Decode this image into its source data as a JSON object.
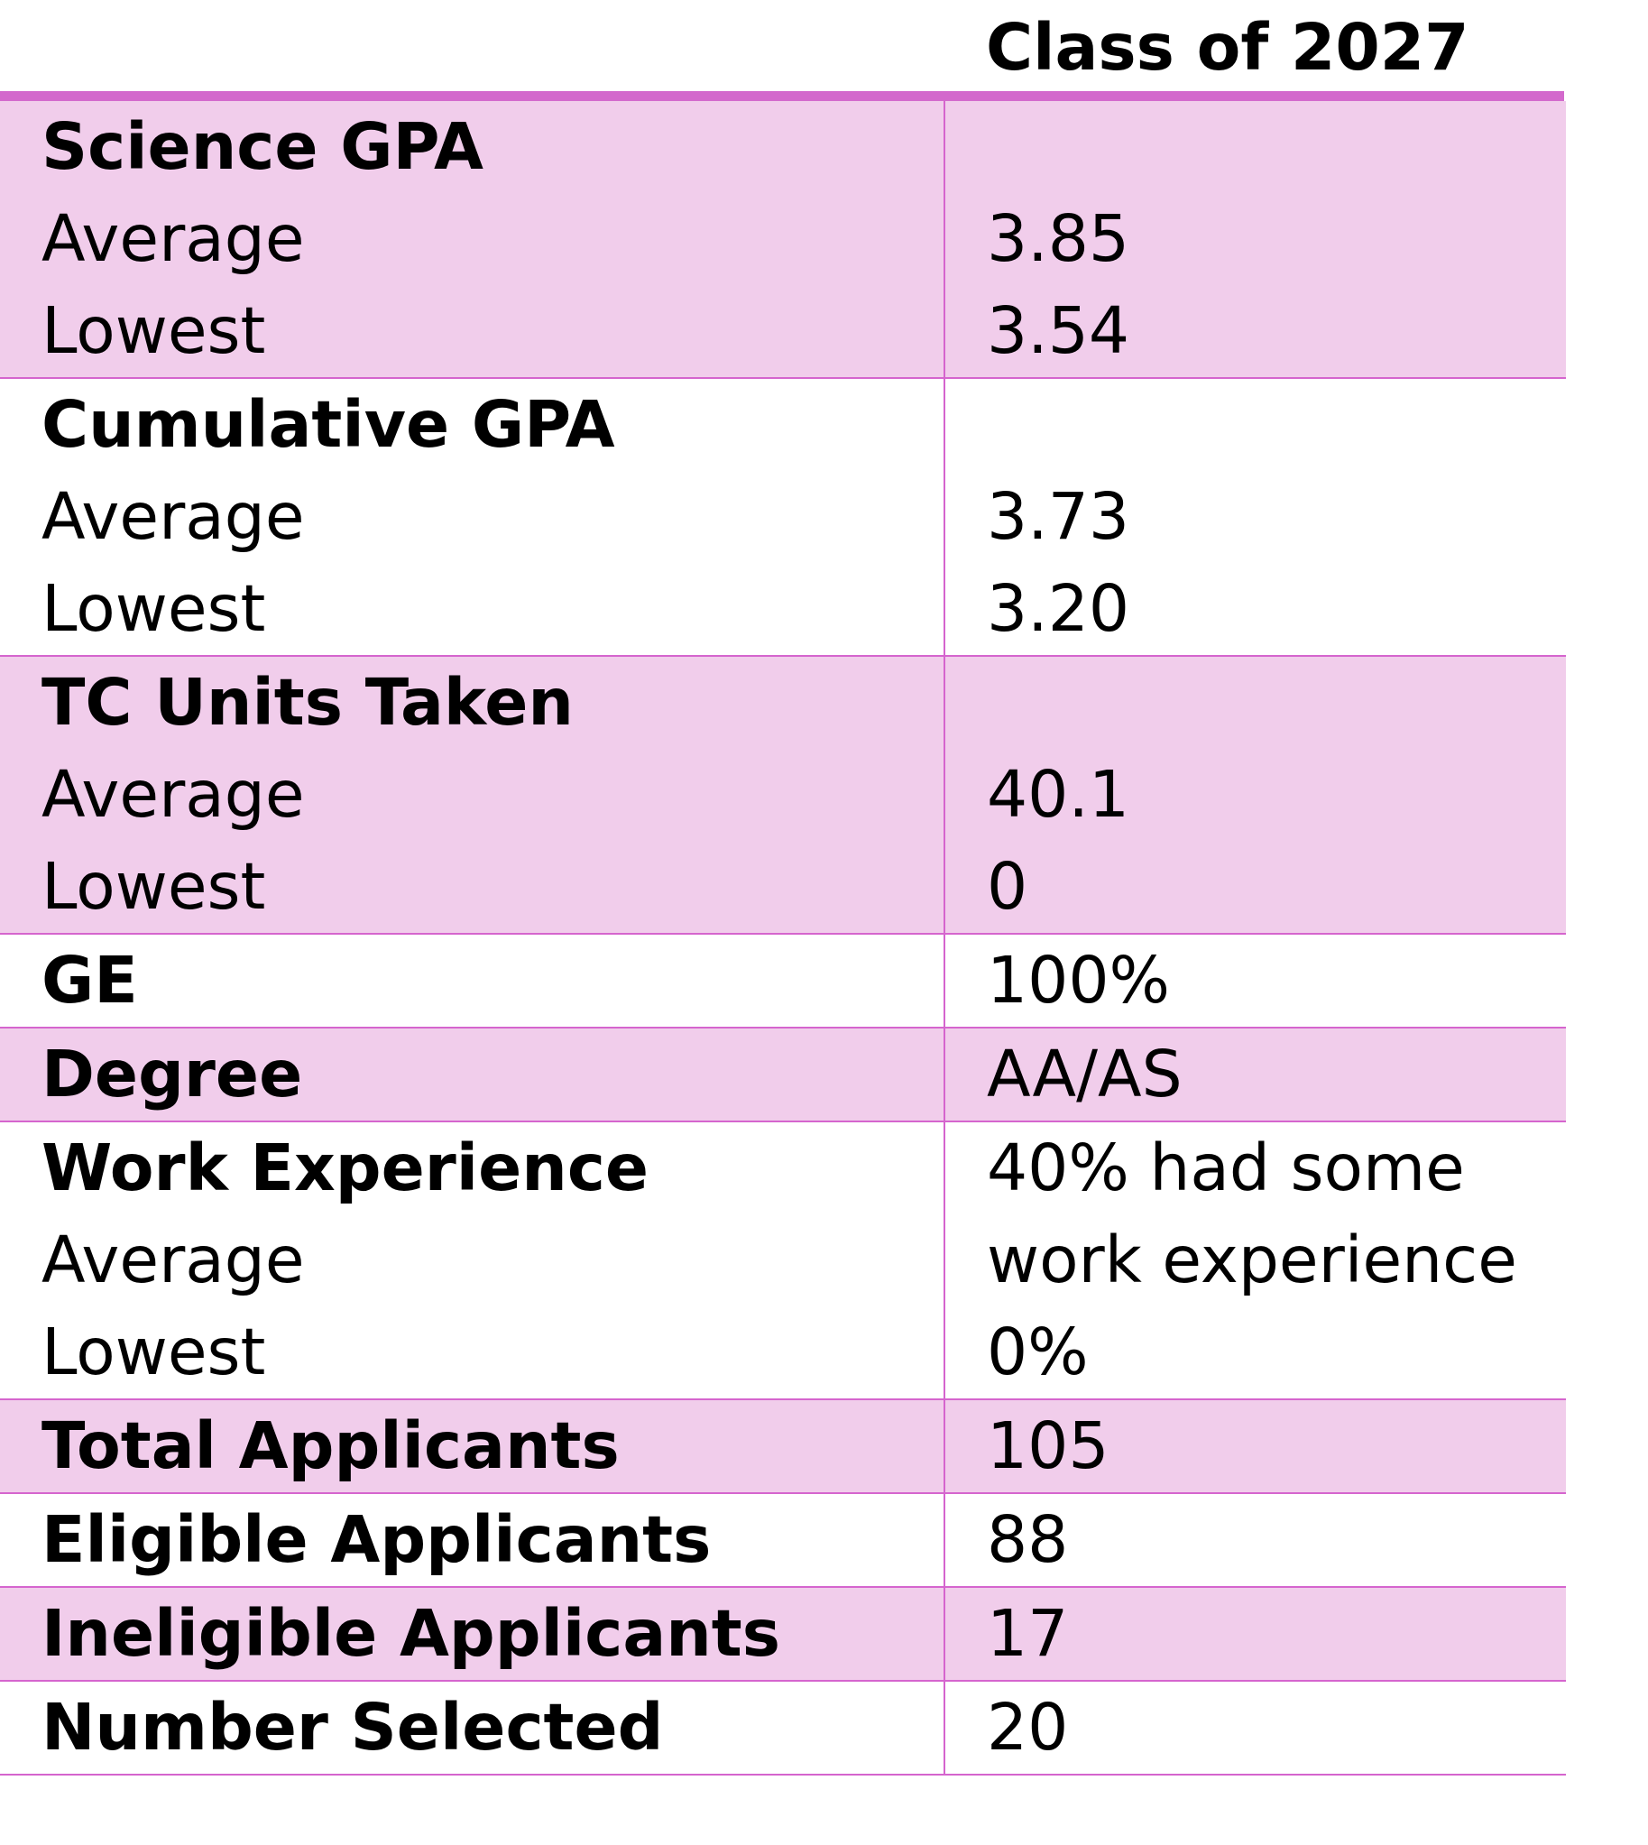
{
  "header": {
    "column_title": "Class of 2027"
  },
  "rows": {
    "science_gpa": {
      "title": "Science GPA",
      "average_label": "Average",
      "average_value": "3.85",
      "lowest_label": "Lowest",
      "lowest_value": "3.54"
    },
    "cumulative_gpa": {
      "title": "Cumulative GPA",
      "average_label": "Average",
      "average_value": "3.73",
      "lowest_label": "Lowest",
      "lowest_value": "3.20"
    },
    "tc_units": {
      "title": "TC Units Taken",
      "average_label": "Average",
      "average_value": "40.1",
      "lowest_label": "Lowest",
      "lowest_value": "0"
    },
    "ge": {
      "title": "GE",
      "value": "100%"
    },
    "degree": {
      "title": "Degree",
      "value": "AA/AS"
    },
    "work_experience": {
      "title": "Work Experience",
      "average_label": "Average",
      "lowest_label": "Lowest",
      "value_line1": "40% had some",
      "value_line2": "work experience",
      "value_line3": "0%"
    },
    "total_applicants": {
      "title": "Total Applicants",
      "value": "105"
    },
    "eligible_applicants": {
      "title": "Eligible Applicants",
      "value": "88"
    },
    "ineligible_applicants": {
      "title": "Ineligible Applicants",
      "value": "17"
    },
    "number_selected": {
      "title": "Number Selected",
      "value": "20"
    }
  },
  "colors": {
    "accent_rule": "#d369cc",
    "row_shade": "#f1cdeb",
    "grid_line": "#d565ce"
  }
}
